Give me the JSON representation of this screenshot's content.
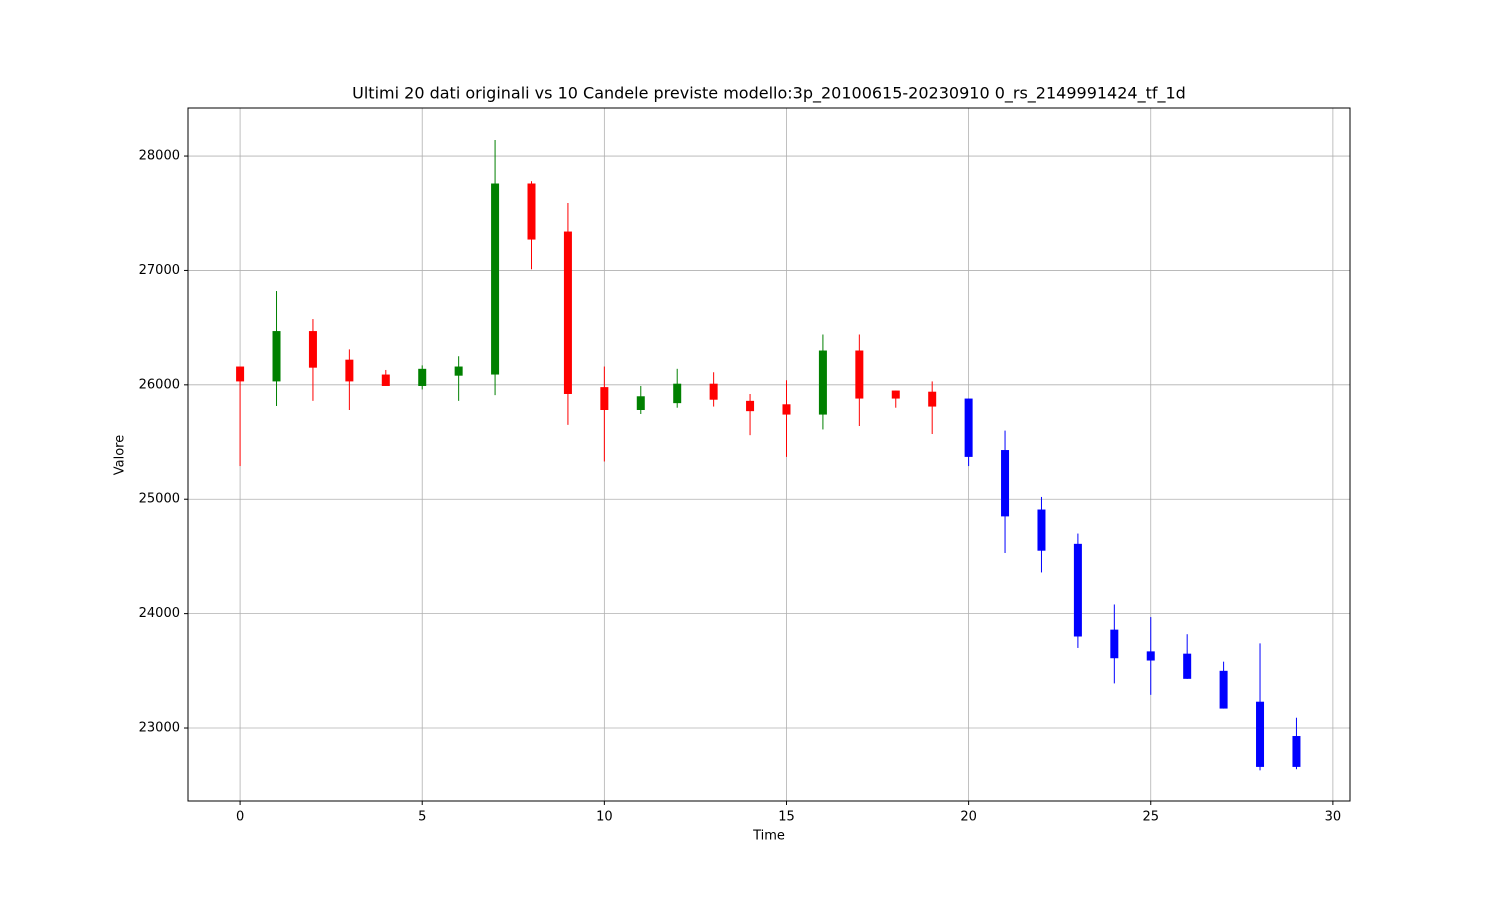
{
  "chart_data": {
    "type": "candlestick",
    "title": "Ultimi 20 dati originali vs 10 Candele previste modello:3p_20100615-20230910 0_rs_2149991424_tf_1d",
    "xlabel": "Time",
    "ylabel": "Valore",
    "x": [
      0,
      1,
      2,
      3,
      4,
      5,
      6,
      7,
      8,
      9,
      10,
      11,
      12,
      13,
      14,
      15,
      16,
      17,
      18,
      19,
      20,
      21,
      22,
      23,
      24,
      25,
      26,
      27,
      28,
      29
    ],
    "open": [
      26160,
      26030,
      26470,
      26220,
      26090,
      25990,
      26080,
      26090,
      27760,
      27340,
      25980,
      25780,
      25840,
      26010,
      25860,
      25830,
      25740,
      26300,
      25950,
      25940,
      25880,
      25430,
      24910,
      24610,
      23860,
      23670,
      23650,
      23500,
      23230,
      22930
    ],
    "high": [
      26160,
      26820,
      26575,
      26310,
      26130,
      26170,
      26250,
      28140,
      27780,
      27590,
      26160,
      25990,
      26140,
      26110,
      25920,
      26040,
      26440,
      26440,
      25950,
      26030,
      25880,
      25600,
      25020,
      24700,
      24080,
      23970,
      23820,
      23580,
      23740,
      23090
    ],
    "low": [
      25290,
      25815,
      25860,
      25780,
      25990,
      25960,
      25860,
      25910,
      27010,
      25650,
      25330,
      25745,
      25800,
      25810,
      25560,
      25370,
      25610,
      25640,
      25800,
      25570,
      25290,
      24530,
      24360,
      23700,
      23390,
      23290,
      23430,
      23170,
      22630,
      22640
    ],
    "close": [
      26030,
      26470,
      26150,
      26030,
      25990,
      26140,
      26160,
      27760,
      27270,
      25920,
      25780,
      25900,
      26010,
      25870,
      25770,
      25740,
      26300,
      25880,
      25880,
      25810,
      25370,
      24850,
      24550,
      23800,
      23610,
      23590,
      23430,
      23170,
      22660,
      22660
    ],
    "colors": [
      "red",
      "green",
      "red",
      "red",
      "red",
      "green",
      "green",
      "green",
      "red",
      "red",
      "red",
      "green",
      "green",
      "red",
      "red",
      "red",
      "green",
      "red",
      "red",
      "red",
      "blue",
      "blue",
      "blue",
      "blue",
      "blue",
      "blue",
      "blue",
      "blue",
      "blue",
      "blue"
    ],
    "xlim": [
      -1.43,
      30.47
    ],
    "ylim": [
      22362,
      28420
    ],
    "xticks": [
      0,
      5,
      10,
      15,
      20,
      25,
      30
    ],
    "yticks": [
      23000,
      24000,
      25000,
      26000,
      27000,
      28000
    ],
    "grid": true
  }
}
